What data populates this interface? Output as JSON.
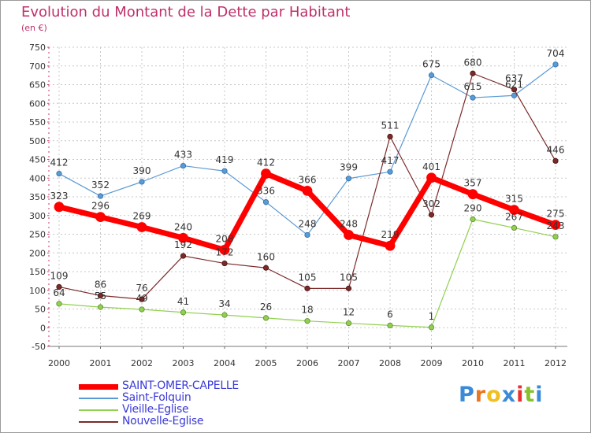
{
  "header": {
    "title": "Evolution du Montant de la Dette par Habitant",
    "unit": "(en €)"
  },
  "brand": {
    "text": "Proxiti"
  },
  "chart_data": {
    "type": "line",
    "x": [
      "2000",
      "2001",
      "2002",
      "2003",
      "2004",
      "2005",
      "2006",
      "2007",
      "2008",
      "2009",
      "2010",
      "2011",
      "2012"
    ],
    "ylim": [
      -50,
      750
    ],
    "yticks": [
      -50,
      0,
      50,
      100,
      150,
      200,
      250,
      300,
      350,
      400,
      450,
      500,
      550,
      600,
      650,
      700,
      750
    ],
    "grid": true,
    "legend_position": "bottom-left",
    "series": [
      {
        "name": "SAINT-OMER-CAPELLE",
        "color": "#ff0000",
        "values": [
          323,
          296,
          269,
          240,
          208,
          412,
          366,
          248,
          219,
          401,
          357,
          315,
          275
        ]
      },
      {
        "name": "Saint-Folquin",
        "color": "#5b9bd5",
        "values": [
          412,
          352,
          390,
          433,
          419,
          336,
          248,
          399,
          417,
          675,
          615,
          621,
          704
        ]
      },
      {
        "name": "Vieille-Eglise",
        "color": "#92d050",
        "values": [
          64,
          55,
          49,
          41,
          34,
          26,
          18,
          12,
          6,
          1,
          290,
          267,
          243
        ]
      },
      {
        "name": "Nouvelle-Eglise",
        "color": "#7b2a2a",
        "values": [
          109,
          86,
          76,
          192,
          172,
          160,
          105,
          105,
          511,
          302,
          680,
          637,
          446
        ]
      }
    ]
  }
}
